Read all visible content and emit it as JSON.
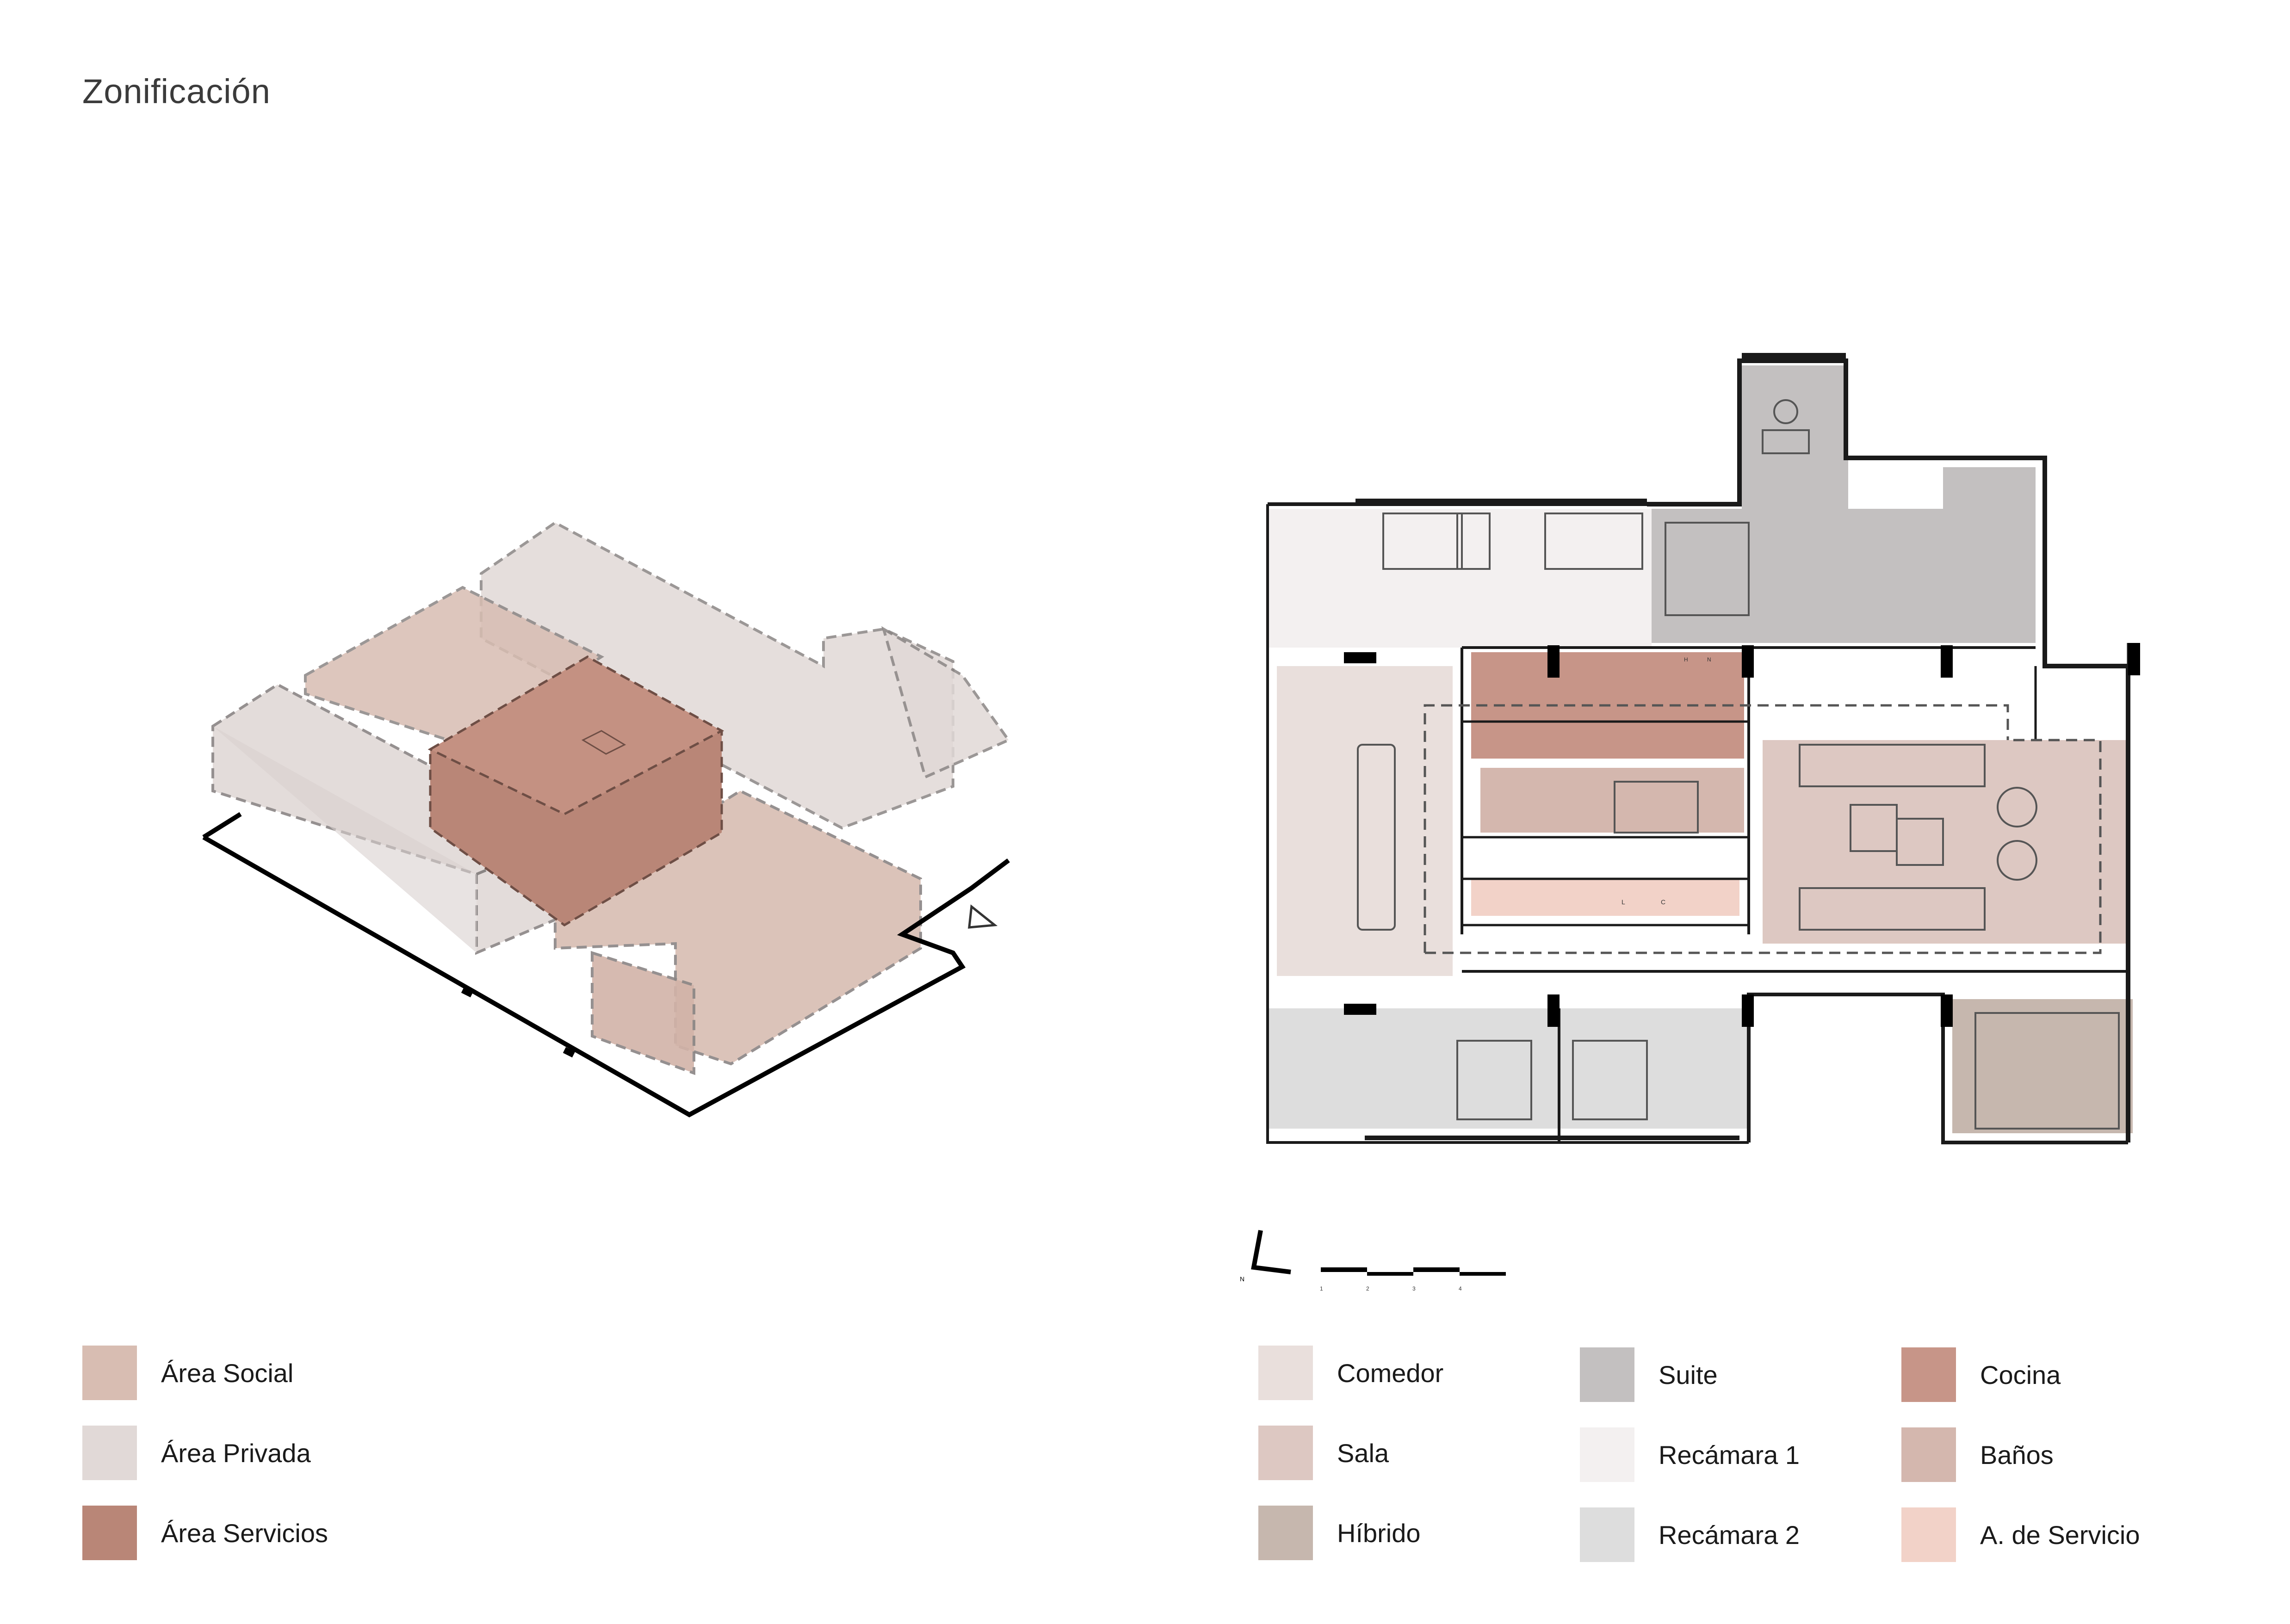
{
  "title": "Zonificación",
  "colors": {
    "social": "#d8bdb2",
    "privada": "#e1d9d7",
    "servicios": "#b98677",
    "comedor": "#e9dfdc",
    "sala": "#ddc8c2",
    "hibrido": "#c6b7ae",
    "suite": "#c3c0c0",
    "recamara1": "#f3f0f0",
    "recamara2": "#dddddd",
    "cocina": "#c79588",
    "banos": "#d4b7ae",
    "servicio": "#f2d2c8"
  },
  "zones_legend": [
    {
      "label": "Área Social",
      "color": "#d8bdb2"
    },
    {
      "label": "Área Privada",
      "color": "#e1d9d7"
    },
    {
      "label": "Área Servicios",
      "color": "#b98677"
    }
  ],
  "rooms_legend": [
    {
      "label": "Comedor",
      "color": "#e9dfdc"
    },
    {
      "label": "Sala",
      "color": "#ddc8c2"
    },
    {
      "label": "Híbrido",
      "color": "#c6b7ae"
    },
    {
      "label": "Suite",
      "color": "#c3c0c0"
    },
    {
      "label": "Recámara 1",
      "color": "#f3f0f0"
    },
    {
      "label": "Recámara 2",
      "color": "#dddddd"
    },
    {
      "label": "Cocina",
      "color": "#c79588"
    },
    {
      "label": "Baños",
      "color": "#d4b7ae"
    },
    {
      "label": "A. de Servicio",
      "color": "#f2d2c8"
    }
  ],
  "plan_labels": {
    "counter_l": "L",
    "counter_c": "C",
    "counter_h": "H",
    "counter_n": "N"
  },
  "north": {
    "letter": "N"
  },
  "scale_bar": {
    "ticks": [
      "1",
      "2",
      "3",
      "4"
    ]
  }
}
